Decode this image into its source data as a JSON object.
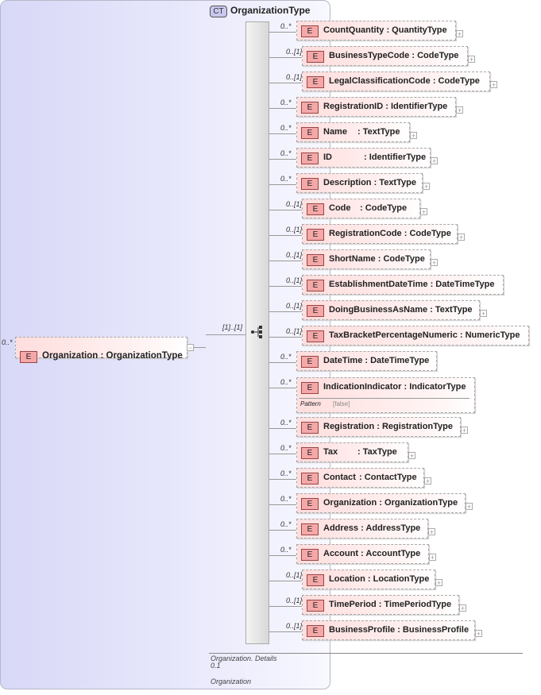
{
  "root": {
    "cardinality": "0..*",
    "badge": "E",
    "name": "Organization",
    "type": "OrganizationType",
    "toggle": "−"
  },
  "complex_type": {
    "badge": "CT",
    "name": "OrganizationType",
    "sequence_cardinality": "[1]..[1]"
  },
  "elements": [
    {
      "card": "0..*",
      "name": "CountQuantity",
      "type": "QuantityType",
      "expand": true
    },
    {
      "card": "0..[1]",
      "name": "BusinessTypeCode",
      "type": "CodeType",
      "expand": true
    },
    {
      "card": "0..[1]",
      "name": "LegalClassificationCode",
      "type": "CodeType",
      "expand": true
    },
    {
      "card": "0..*",
      "name": "RegistrationID",
      "type": "IdentifierType",
      "expand": true
    },
    {
      "card": "0..*",
      "name": "Name",
      "type": "TextType",
      "expand": true
    },
    {
      "card": "0..*",
      "name": "ID",
      "type": "IdentifierType",
      "expand": true
    },
    {
      "card": "0..*",
      "name": "Description",
      "type": "TextType",
      "expand": true
    },
    {
      "card": "0..[1]",
      "name": "Code",
      "type": "CodeType",
      "expand": true
    },
    {
      "card": "0..[1]",
      "name": "RegistrationCode",
      "type": "CodeType",
      "expand": true
    },
    {
      "card": "0..[1]",
      "name": "ShortName",
      "type": "CodeType",
      "expand": true
    },
    {
      "card": "0..[1]",
      "name": "EstablishmentDateTime",
      "type": "DateTimeType",
      "expand": false
    },
    {
      "card": "0..[1]",
      "name": "DoingBusinessAsName",
      "type": "TextType",
      "expand": true
    },
    {
      "card": "0..[1]",
      "name": "TaxBracketPercentageNumeric",
      "type": "NumericType",
      "expand": false
    },
    {
      "card": "0..*",
      "name": "DateTime",
      "type": "DateTimeType",
      "expand": false
    },
    {
      "card": "0..*",
      "name": "IndicationIndicator",
      "type": "IndicatorType",
      "expand": false,
      "facet_label": "Pattern",
      "facet_value": "[false]"
    },
    {
      "card": "0..*",
      "name": "Registration",
      "type": "RegistrationType",
      "expand": true
    },
    {
      "card": "0..*",
      "name": "Tax",
      "type": "TaxType",
      "expand": true
    },
    {
      "card": "0..*",
      "name": "Contact",
      "type": "ContactType",
      "expand": true
    },
    {
      "card": "0..*",
      "name": "Organization",
      "type": "OrganizationType",
      "expand": true
    },
    {
      "card": "0..*",
      "name": "Address",
      "type": "AddressType",
      "expand": true
    },
    {
      "card": "0..*",
      "name": "Account",
      "type": "AccountType",
      "expand": true
    },
    {
      "card": "0..[1]",
      "name": "Location",
      "type": "LocationType",
      "expand": true
    },
    {
      "card": "0..[1]",
      "name": "TimePeriod",
      "type": "TimePeriodType",
      "expand": true
    },
    {
      "card": "0..[1]",
      "name": "BusinessProfile",
      "type": "BusinessProfile",
      "expand": true
    }
  ],
  "element_badge": "E",
  "expand_glyph": "+",
  "footer": {
    "line1": "Organization. Details",
    "line2": "0.1",
    "line3": "Organization"
  }
}
